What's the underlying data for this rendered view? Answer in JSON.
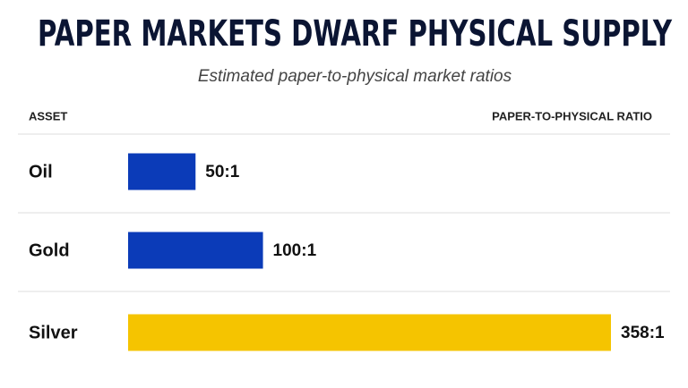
{
  "chart_data": {
    "type": "bar",
    "orientation": "horizontal",
    "title": "PAPER MARKETS DWARF PHYSICAL SUPPLY",
    "subtitle": "Estimated paper-to-physical market ratios",
    "category_header": "ASSET",
    "value_header": "PAPER-TO-PHYSICAL RATIO",
    "categories": [
      "Oil",
      "Gold",
      "Silver"
    ],
    "values": [
      50,
      100,
      358
    ],
    "value_labels": [
      "50:1",
      "100:1",
      "358:1"
    ],
    "colors": [
      "#0b3bb8",
      "#0b3bb8",
      "#f5c400"
    ]
  }
}
